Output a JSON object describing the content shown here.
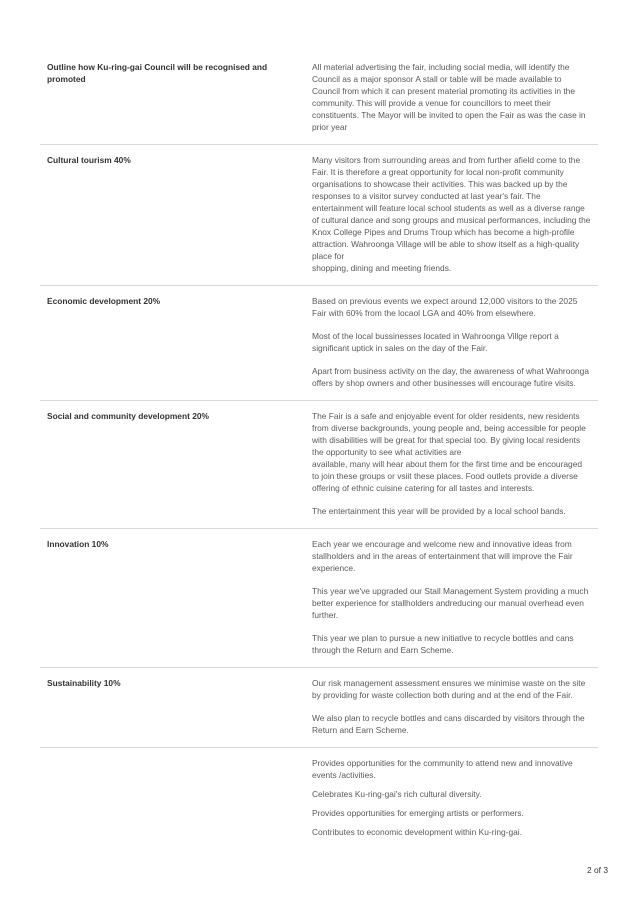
{
  "rows": [
    {
      "label": "Outline how Ku-ring-gai Council will be recognised and promoted",
      "paragraphs": [
        "All material advertising the fair, including social media, will identify the Council as a major sponsor A stall or table will be made available to Council from which it can present material promoting its activities in the community. This will provide a venue for councillors to meet their constituents. The Mayor will be invited to open the Fair as was the case in prior year"
      ]
    },
    {
      "label": "Cultural tourism 40%",
      "paragraphs": [
        "Many visitors from surrounding areas and from further afield come to the Fair. It is therefore a great opportunity for local non-profit community organisations to showcase their activities. This was backed up by the responses to a visitor survey conducted at last year's fair. The entertainment will feature local school students as well as a diverse range of cultural dance and song groups and musical performances, including the Knox College Pipes and Drums Troup which has become a high-profile attraction. Wahroonga Village will be able to show itself as a high-quality place for\nshopping, dining and meeting friends."
      ]
    },
    {
      "label": "Economic development 20%",
      "paragraphs": [
        "Based on previous events we expect around 12,000 visitors to the 2025 Fair with 60% from the locaol LGA and 40% from elsewhere.",
        "Most of the local bussinesses located in Wahroonga Villge report a significant uptick in sales on the day of the Fair.",
        "Apart from business activity on the day, the awareness of what Wahroonga offers by shop owners and other businesses will encourage futire visits."
      ]
    },
    {
      "label": "Social and community development 20%",
      "paragraphs": [
        "The Fair is a safe and enjoyable event for older residents, new residents from diverse backgrounds, young people and, being accessible for people with disabilities will be great for that special too. By giving local residents the opportunity to see what activities are\navailable, many will hear about them for the first time and be encouraged to join these groups or vsiit these places. Food outlets provide a diverse offering of ethnic cuisine catering for all tastes and interests.",
        "The entertainment this year will be provided by a local school bands."
      ]
    },
    {
      "label": "Innovation 10%",
      "paragraphs": [
        "Each year we encourage and welcome new and innovative ideas from stallholders and in the areas of entertainment that will improve the Fair experience.",
        "This year we've upgraded our Stall Management System providing a much better experience for stallholders andreducing our manual overhead even further.",
        "This year we plan to pursue a new initiative to recycle bottles and cans through the Return and Earn Scheme."
      ]
    },
    {
      "label": "Sustainability 10%",
      "paragraphs": [
        "Our risk management assessment ensures we minimise waste on the site by providing for waste collection both during and at the end of the Fair.",
        "We also plan to recycle bottles and cans discarded by visitors through the Return and Earn Scheme."
      ]
    },
    {
      "label": "",
      "paragraphs": [
        "Provides opportunities for the community to attend new and innovative events /activities.",
        "Celebrates Ku-ring-gai's rich cultural diversity.",
        "Provides opportunities for emerging artists or performers.",
        "Contributes to economic development within Ku-ring-gai."
      ]
    }
  ],
  "page_number": "2 of 3"
}
